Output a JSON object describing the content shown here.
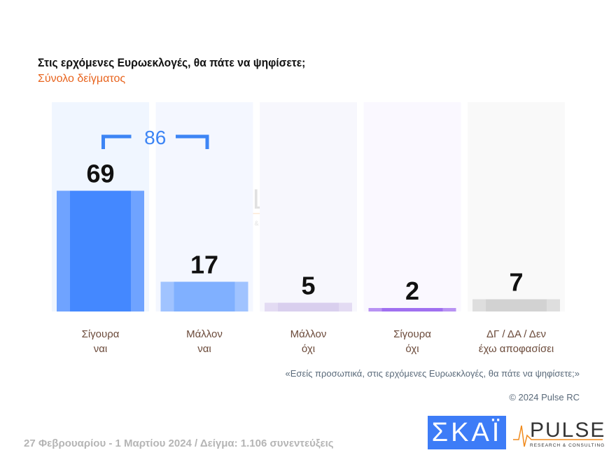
{
  "title": "Στις ερχόμενες Ευρωεκλογές, θα πάτε να ψηφίσετε;",
  "subtitle": "Σύνολο δείγματος",
  "chart_data": {
    "type": "bar",
    "categories": [
      [
        "Σίγουρα",
        "ναι"
      ],
      [
        "Μάλλον",
        "ναι"
      ],
      [
        "Μάλλον",
        "όχι"
      ],
      [
        "Σίγουρα",
        "όχι"
      ],
      [
        "ΔΓ / ΔΑ / Δεν",
        "έχω αποφασίσει"
      ]
    ],
    "values": [
      69,
      17,
      5,
      2,
      7
    ],
    "bar_colors": [
      "#4488ff",
      "#80b0ff",
      "#d9cfee",
      "#a070f0",
      "#d2d2d2"
    ],
    "side_colors": [
      "#6fa3ff",
      "#a0c3ff",
      "#e3dbf3",
      "#b893f3",
      "#dedede"
    ],
    "column_bg": [
      "#f0f6ff",
      "#f4f7ff",
      "#f7f7fd",
      "#faf8ff",
      "#f9f9f9"
    ],
    "bracket": {
      "label": "86",
      "spans": [
        0,
        1
      ],
      "color": "#3d85f5"
    }
  },
  "quote": "«Εσείς προσωπικά, στις ερχόμενες Ευρωεκλογές, θα πάτε να ψηφίσετε;»",
  "copyright": "© 2024 Pulse RC",
  "footer": "27 Φεβρουαρίου - 1 Μαρτίου 2024  /  Δείγμα:  1.106 συνεντεύξεις",
  "logos": {
    "skai": "ΣΚΑΪ",
    "pulse": "PULSE",
    "pulse_sub": "RESEARCH & CONSULTING"
  }
}
